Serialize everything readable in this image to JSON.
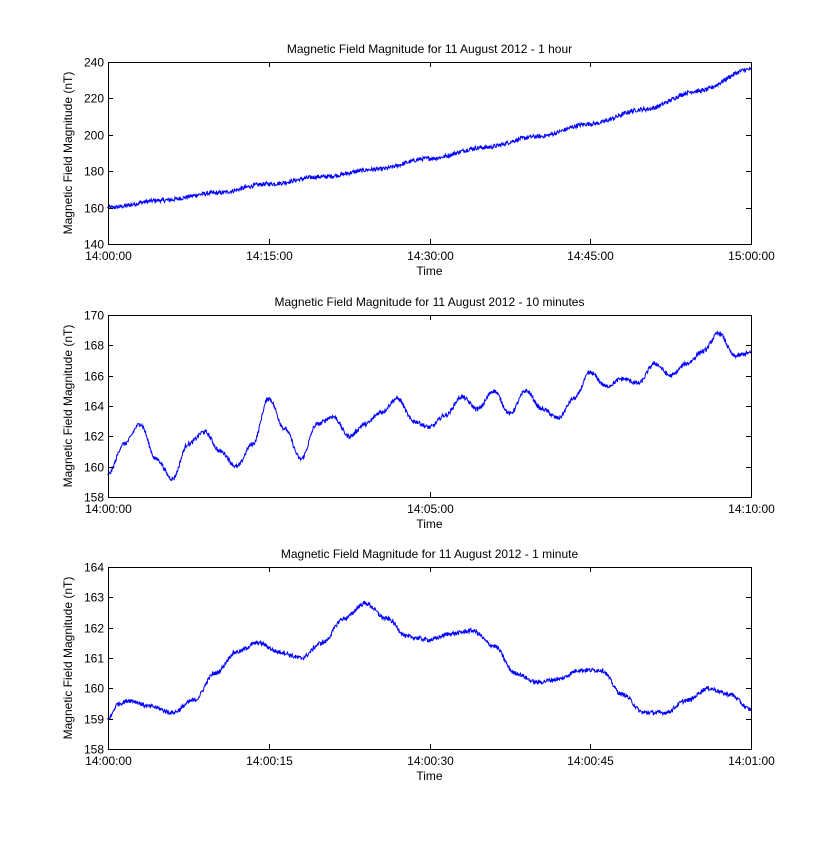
{
  "chart_data": [
    {
      "type": "line",
      "title": "Magnetic Field Magnitude for 11 August 2012 - 1 hour",
      "xlabel": "Time",
      "ylabel": "Magnetic Field Magnitude (nT)",
      "xlim": [
        "14:00:00",
        "15:00:00"
      ],
      "ylim": [
        140,
        240
      ],
      "xticks": [
        "14:00:00",
        "14:15:00",
        "14:30:00",
        "14:45:00",
        "15:00:00"
      ],
      "yticks": [
        140,
        160,
        180,
        200,
        220,
        240
      ],
      "grid": false,
      "series": [
        {
          "color": "#0000ff",
          "x": [
            "14:00:00",
            "14:05:00",
            "14:10:00",
            "14:15:00",
            "14:20:00",
            "14:25:00",
            "14:30:00",
            "14:35:00",
            "14:40:00",
            "14:45:00",
            "14:50:00",
            "14:55:00",
            "15:00:00"
          ],
          "y": [
            160,
            164,
            168,
            173,
            177,
            181,
            187,
            193,
            199,
            206,
            214,
            224,
            236
          ]
        }
      ]
    },
    {
      "type": "line",
      "title": "Magnetic Field Magnitude for 11 August 2012 - 10 minutes",
      "xlabel": "Time",
      "ylabel": "Magnetic Field Magnitude (nT)",
      "xlim": [
        "14:00:00",
        "14:10:00"
      ],
      "ylim": [
        158,
        170
      ],
      "xticks": [
        "14:00:00",
        "14:05:00",
        "14:10:00"
      ],
      "yticks": [
        158,
        160,
        162,
        164,
        166,
        168,
        170
      ],
      "grid": false,
      "series": [
        {
          "color": "#0000ff",
          "x": [
            "14:00:00",
            "14:00:15",
            "14:00:30",
            "14:00:45",
            "14:01:00",
            "14:01:15",
            "14:01:30",
            "14:01:45",
            "14:02:00",
            "14:02:15",
            "14:02:30",
            "14:02:45",
            "14:03:00",
            "14:03:15",
            "14:03:30",
            "14:03:45",
            "14:04:00",
            "14:04:15",
            "14:04:30",
            "14:04:45",
            "14:05:00",
            "14:05:15",
            "14:05:30",
            "14:05:45",
            "14:06:00",
            "14:06:15",
            "14:06:30",
            "14:06:45",
            "14:07:00",
            "14:07:15",
            "14:07:30",
            "14:07:45",
            "14:08:00",
            "14:08:15",
            "14:08:30",
            "14:08:45",
            "14:09:00",
            "14:09:15",
            "14:09:30",
            "14:09:45",
            "14:10:00"
          ],
          "y": [
            159.5,
            161.5,
            162.8,
            160.5,
            159.2,
            161.5,
            162.3,
            161.0,
            160.0,
            161.5,
            164.5,
            162.5,
            160.5,
            162.8,
            163.3,
            162.0,
            162.8,
            163.6,
            164.5,
            163.0,
            162.6,
            163.4,
            164.6,
            163.8,
            165.0,
            163.5,
            165.0,
            163.8,
            163.2,
            164.5,
            166.2,
            165.3,
            165.8,
            165.5,
            166.8,
            166.0,
            166.8,
            167.6,
            168.8,
            167.3,
            167.5
          ]
        }
      ]
    },
    {
      "type": "line",
      "title": "Magnetic Field Magnitude for 11 August 2012 - 1 minute",
      "xlabel": "Time",
      "ylabel": "Magnetic Field Magnitude (nT)",
      "xlim": [
        "14:00:00",
        "14:01:00"
      ],
      "ylim": [
        158,
        164
      ],
      "xticks": [
        "14:00:00",
        "14:00:15",
        "14:00:30",
        "14:00:45",
        "14:01:00"
      ],
      "yticks": [
        158,
        159,
        160,
        161,
        162,
        163,
        164
      ],
      "grid": false,
      "series": [
        {
          "color": "#0000ff",
          "x": [
            "14:00:00",
            "14:00:01",
            "14:00:02",
            "14:00:04",
            "14:00:06",
            "14:00:08",
            "14:00:10",
            "14:00:12",
            "14:00:14",
            "14:00:16",
            "14:00:18",
            "14:00:20",
            "14:00:22",
            "14:00:24",
            "14:00:26",
            "14:00:28",
            "14:00:30",
            "14:00:32",
            "14:00:34",
            "14:00:36",
            "14:00:38",
            "14:00:40",
            "14:00:42",
            "14:00:44",
            "14:00:46",
            "14:00:48",
            "14:00:50",
            "14:00:52",
            "14:00:54",
            "14:00:56",
            "14:00:58",
            "14:01:00"
          ],
          "y": [
            159.0,
            159.5,
            159.6,
            159.4,
            159.2,
            159.6,
            160.5,
            161.2,
            161.5,
            161.2,
            161.0,
            161.5,
            162.3,
            162.8,
            162.3,
            161.7,
            161.6,
            161.8,
            161.9,
            161.4,
            160.5,
            160.2,
            160.3,
            160.6,
            160.6,
            159.8,
            159.2,
            159.2,
            159.6,
            160.0,
            159.8,
            159.3
          ]
        }
      ]
    }
  ]
}
